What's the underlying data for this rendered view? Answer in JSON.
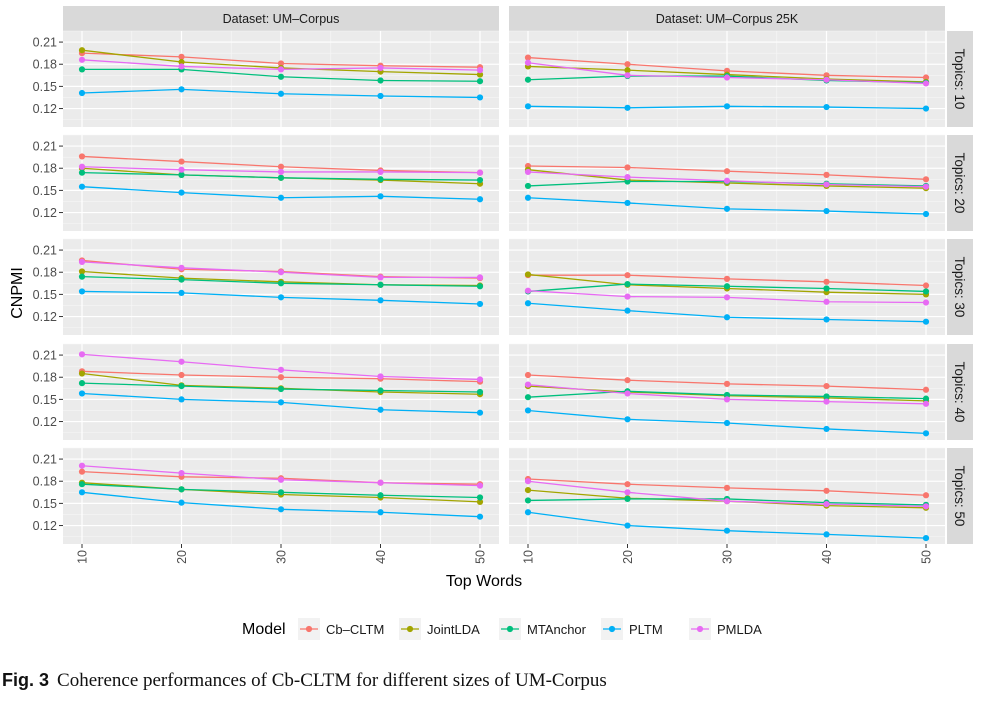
{
  "chart_data": {
    "type": "line",
    "x_label": "Top Words",
    "y_label": "CNPMI",
    "x_ticks": [
      "10",
      "20",
      "30",
      "40",
      "50"
    ],
    "y_ticks": [
      "0.12",
      "0.15",
      "0.18",
      "0.21"
    ],
    "ylim": [
      0.095,
      0.225
    ],
    "col_strips": [
      "Dataset: UM–Corpus",
      "Dataset: UM–Corpus 25K"
    ],
    "row_strips": [
      "Topics: 10",
      "Topics: 20",
      "Topics: 30",
      "Topics: 40",
      "Topics: 50"
    ],
    "legend": {
      "title": "Model",
      "position": "bottom",
      "entries": [
        "Cb–CLTM",
        "JointLDA",
        "MTAnchor",
        "PLTM",
        "PMLDA"
      ]
    },
    "series_colors": [
      "#F8766D",
      "#A3A500",
      "#00BF7D",
      "#00B0F6",
      "#E76BF3"
    ],
    "x": [
      10,
      20,
      30,
      40,
      50
    ],
    "panels": [
      {
        "row": 0,
        "col": 0,
        "series": [
          [
            0.195,
            0.19,
            0.181,
            0.178,
            0.176
          ],
          [
            0.199,
            0.183,
            0.175,
            0.17,
            0.166
          ],
          [
            0.173,
            0.173,
            0.163,
            0.158,
            0.157
          ],
          [
            0.141,
            0.146,
            0.14,
            0.137,
            0.135
          ],
          [
            0.186,
            0.177,
            0.173,
            0.175,
            0.172
          ]
        ]
      },
      {
        "row": 0,
        "col": 1,
        "series": [
          [
            0.189,
            0.18,
            0.171,
            0.165,
            0.162
          ],
          [
            0.177,
            0.172,
            0.166,
            0.16,
            0.156
          ],
          [
            0.159,
            0.164,
            0.164,
            0.158,
            0.155
          ],
          [
            0.123,
            0.121,
            0.123,
            0.122,
            0.12
          ],
          [
            0.182,
            0.165,
            0.162,
            0.159,
            0.154
          ]
        ]
      },
      {
        "row": 1,
        "col": 0,
        "series": [
          [
            0.196,
            0.189,
            0.182,
            0.177,
            0.174
          ],
          [
            0.18,
            0.171,
            0.167,
            0.164,
            0.159
          ],
          [
            0.174,
            0.171,
            0.167,
            0.165,
            0.164
          ],
          [
            0.155,
            0.147,
            0.14,
            0.142,
            0.138
          ],
          [
            0.182,
            0.178,
            0.175,
            0.175,
            0.174
          ]
        ]
      },
      {
        "row": 1,
        "col": 1,
        "series": [
          [
            0.183,
            0.181,
            0.176,
            0.171,
            0.165
          ],
          [
            0.178,
            0.164,
            0.16,
            0.156,
            0.153
          ],
          [
            0.156,
            0.162,
            0.162,
            0.159,
            0.156
          ],
          [
            0.14,
            0.133,
            0.125,
            0.122,
            0.118
          ],
          [
            0.175,
            0.168,
            0.163,
            0.158,
            0.155
          ]
        ]
      },
      {
        "row": 2,
        "col": 0,
        "series": [
          [
            0.196,
            0.184,
            0.181,
            0.174,
            0.172
          ],
          [
            0.181,
            0.172,
            0.167,
            0.163,
            0.162
          ],
          [
            0.174,
            0.17,
            0.165,
            0.163,
            0.161
          ],
          [
            0.154,
            0.152,
            0.146,
            0.142,
            0.137
          ],
          [
            0.194,
            0.186,
            0.18,
            0.173,
            0.173
          ]
        ]
      },
      {
        "row": 2,
        "col": 1,
        "series": [
          [
            0.176,
            0.176,
            0.171,
            0.167,
            0.162
          ],
          [
            0.177,
            0.163,
            0.158,
            0.153,
            0.15
          ],
          [
            0.154,
            0.164,
            0.161,
            0.158,
            0.154
          ],
          [
            0.138,
            0.128,
            0.119,
            0.116,
            0.113
          ],
          [
            0.155,
            0.147,
            0.146,
            0.14,
            0.139
          ]
        ]
      },
      {
        "row": 3,
        "col": 0,
        "series": [
          [
            0.188,
            0.183,
            0.18,
            0.178,
            0.174
          ],
          [
            0.185,
            0.169,
            0.165,
            0.16,
            0.157
          ],
          [
            0.172,
            0.168,
            0.164,
            0.162,
            0.16
          ],
          [
            0.158,
            0.15,
            0.146,
            0.136,
            0.132
          ],
          [
            0.211,
            0.201,
            0.19,
            0.181,
            0.177
          ]
        ]
      },
      {
        "row": 3,
        "col": 1,
        "series": [
          [
            0.183,
            0.176,
            0.171,
            0.168,
            0.163
          ],
          [
            0.168,
            0.16,
            0.155,
            0.152,
            0.148
          ],
          [
            0.153,
            0.161,
            0.156,
            0.154,
            0.151
          ],
          [
            0.135,
            0.123,
            0.118,
            0.11,
            0.104
          ],
          [
            0.17,
            0.158,
            0.15,
            0.147,
            0.144
          ]
        ]
      },
      {
        "row": 4,
        "col": 0,
        "series": [
          [
            0.193,
            0.186,
            0.184,
            0.178,
            0.176
          ],
          [
            0.178,
            0.169,
            0.162,
            0.158,
            0.152
          ],
          [
            0.176,
            0.169,
            0.165,
            0.161,
            0.158
          ],
          [
            0.165,
            0.151,
            0.142,
            0.138,
            0.132
          ],
          [
            0.201,
            0.191,
            0.182,
            0.178,
            0.174
          ]
        ]
      },
      {
        "row": 4,
        "col": 1,
        "series": [
          [
            0.183,
            0.176,
            0.171,
            0.167,
            0.161
          ],
          [
            0.168,
            0.157,
            0.153,
            0.147,
            0.144
          ],
          [
            0.154,
            0.156,
            0.156,
            0.151,
            0.148
          ],
          [
            0.138,
            0.12,
            0.113,
            0.108,
            0.103
          ],
          [
            0.18,
            0.165,
            0.153,
            0.149,
            0.146
          ]
        ]
      }
    ]
  },
  "caption": {
    "label": "Fig. 3",
    "text": "Coherence performances of Cb-CLTM for different sizes of UM-Corpus"
  }
}
